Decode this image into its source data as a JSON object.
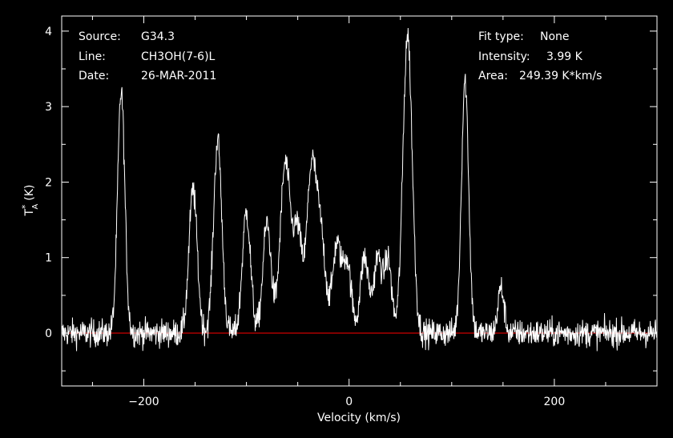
{
  "colors": {
    "background": "#000000",
    "foreground": "#ffffff",
    "baseline": "#ff0000"
  },
  "info_left": [
    {
      "label": "Source:",
      "value": "G34.3"
    },
    {
      "label": "Line:",
      "value": "CH3OH(7-6)L"
    },
    {
      "label": "Date:",
      "value": "26-MAR-2011"
    }
  ],
  "info_right": [
    {
      "label": "Fit type:",
      "value": "None"
    },
    {
      "label": "Intensity:",
      "value": "3.99 K"
    },
    {
      "label": "Area:",
      "value": "249.39 K*km/s"
    }
  ],
  "chart_data": {
    "type": "line",
    "title": "",
    "xlabel": "Velocity (km/s)",
    "ylabel_main": "T",
    "ylabel_sup": "*",
    "ylabel_sub": "A",
    "ylabel_unit": "(K)",
    "xlim": [
      -280,
      300
    ],
    "ylim": [
      -0.7,
      4.2
    ],
    "xticks": [
      -200,
      0,
      200
    ],
    "xtick_labels": [
      "−200",
      "0",
      "200"
    ],
    "yticks": [
      0,
      1,
      2,
      3,
      4
    ],
    "ytick_labels": [
      "0",
      "1",
      "2",
      "3",
      "4"
    ],
    "baseline_y": 0,
    "noise_rms": 0.13,
    "peaks": [
      {
        "x": -222,
        "height": 3.2,
        "width": 3.5
      },
      {
        "x": -152,
        "height": 1.9,
        "width": 4
      },
      {
        "x": -128,
        "height": 2.55,
        "width": 4
      },
      {
        "x": -100,
        "height": 1.6,
        "width": 4
      },
      {
        "x": -80,
        "height": 1.45,
        "width": 4
      },
      {
        "x": -62,
        "height": 2.25,
        "width": 5
      },
      {
        "x": -50,
        "height": 1.3,
        "width": 4
      },
      {
        "x": -37,
        "height": 2.0,
        "width": 4.5
      },
      {
        "x": -28,
        "height": 1.3,
        "width": 5
      },
      {
        "x": -12,
        "height": 1.15,
        "width": 4
      },
      {
        "x": -2,
        "height": 0.95,
        "width": 4
      },
      {
        "x": 15,
        "height": 1.0,
        "width": 4
      },
      {
        "x": 28,
        "height": 1.0,
        "width": 4
      },
      {
        "x": 38,
        "height": 0.95,
        "width": 3.5
      },
      {
        "x": 57,
        "height": 3.95,
        "width": 4.5
      },
      {
        "x": 113,
        "height": 3.35,
        "width": 3.5
      },
      {
        "x": 148,
        "height": 0.6,
        "width": 3
      }
    ]
  }
}
